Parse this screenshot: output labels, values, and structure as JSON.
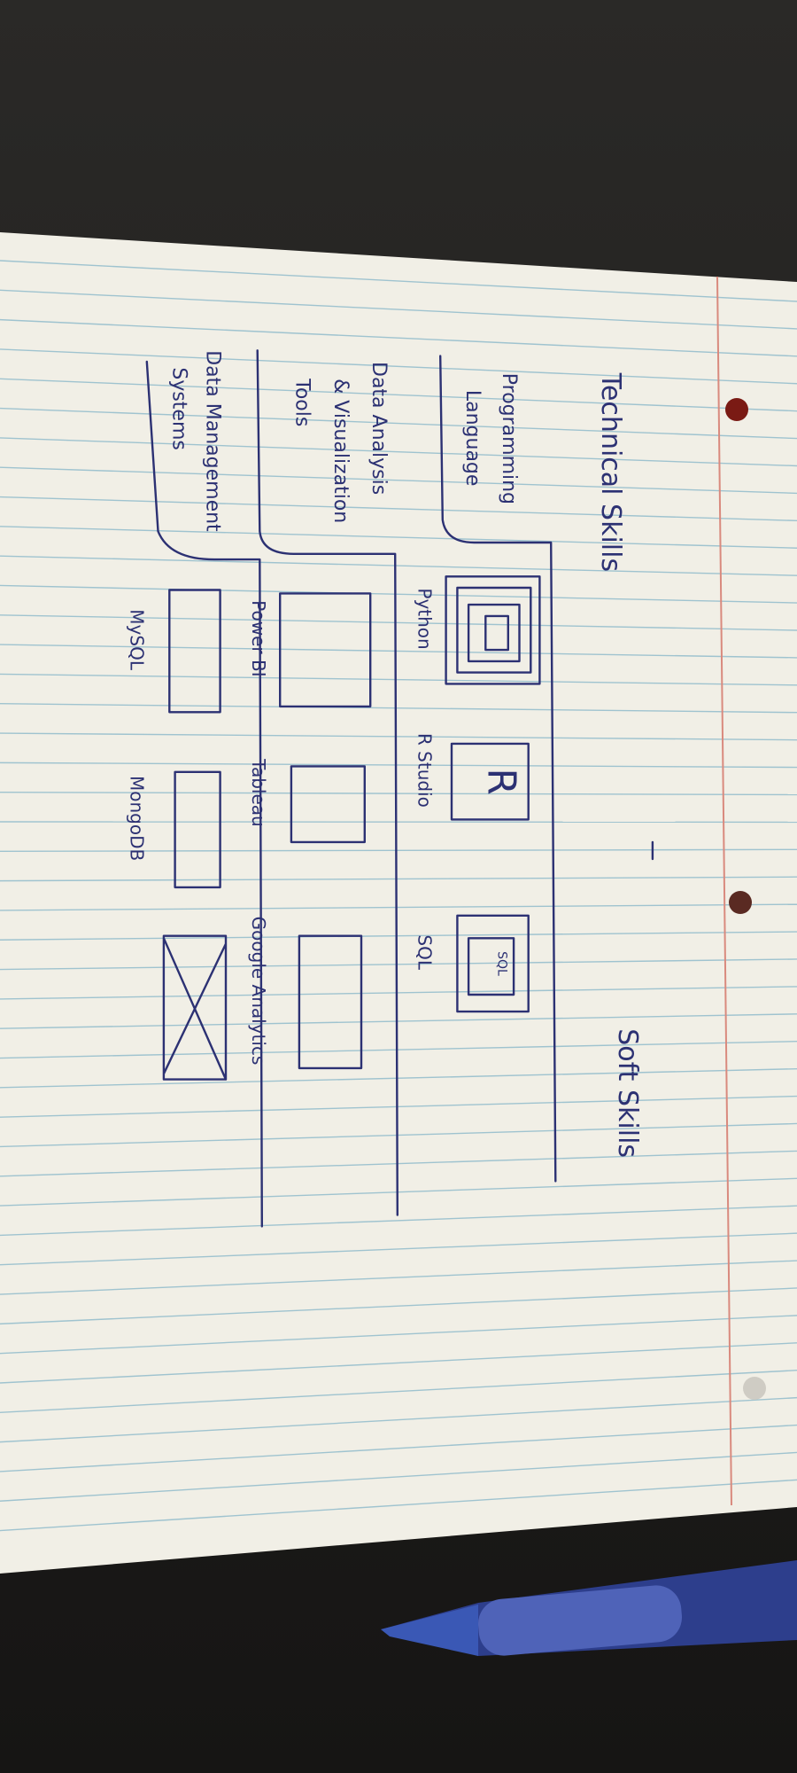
{
  "headings": {
    "technical": "Technical Skills",
    "soft": "Soft Skills"
  },
  "rows": [
    {
      "label_lines": [
        "Programming",
        "Language"
      ],
      "items": [
        {
          "name": "Python"
        },
        {
          "name": "R Studio",
          "icon_text": "R"
        },
        {
          "name": "SQL",
          "icon_text": "SQL"
        }
      ]
    },
    {
      "label_lines": [
        "Data Analysis",
        "& Visualization",
        "Tools"
      ],
      "items": [
        {
          "name": "Power BI"
        },
        {
          "name": "Tableau"
        },
        {
          "name": "Google Analytics"
        }
      ]
    },
    {
      "label_lines": [
        "Data Management",
        "Systems"
      ],
      "items": [
        {
          "name": "MySQL"
        },
        {
          "name": "MongoDB"
        }
      ]
    }
  ]
}
